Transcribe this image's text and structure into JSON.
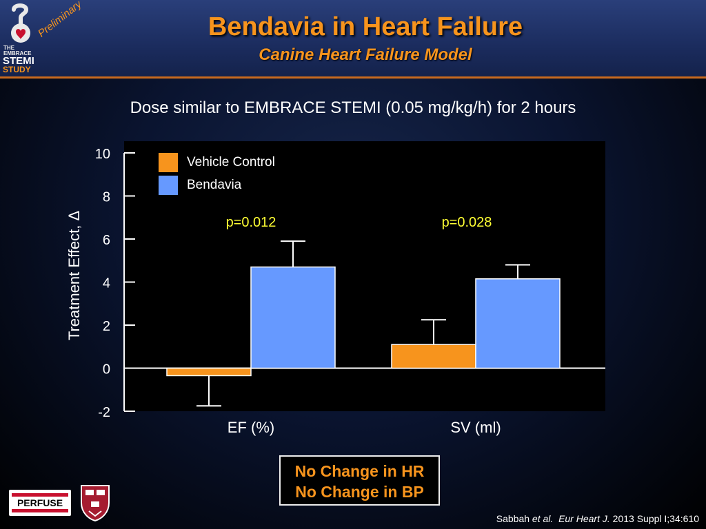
{
  "header": {
    "title": "Bendavia in Heart Failure",
    "subtitle": "Canine Heart Failure Model",
    "preliminary": "Preliminary",
    "logo": {
      "line1": "THE",
      "line2": "EMBRACE",
      "line3": "STEMI",
      "line4": "STUDY"
    }
  },
  "dose_text": "Dose similar to EMBRACE STEMI (0.05 mg/kg/h) for 2 hours",
  "chart_data": {
    "type": "bar",
    "ylabel": "Treatment Effect, Δ",
    "ylim": [
      -2,
      10
    ],
    "yticks": [
      -2,
      0,
      2,
      4,
      6,
      8,
      10
    ],
    "categories": [
      "EF (%)",
      "SV (ml)"
    ],
    "series": [
      {
        "name": "Vehicle Control",
        "color": "#f7941d",
        "values": [
          -0.35,
          1.1
        ],
        "errors": [
          1.4,
          1.15
        ]
      },
      {
        "name": "Bendavia",
        "color": "#6699ff",
        "values": [
          4.7,
          4.15
        ],
        "errors": [
          1.2,
          0.65
        ]
      }
    ],
    "annotations": [
      "p=0.012",
      "p=0.028"
    ],
    "legend_position": "top-left"
  },
  "notes": [
    "No Change in HR",
    "No Change in BP"
  ],
  "citation": {
    "author": "Sabbah",
    "etal": "et al.",
    "journal": "Eur Heart J.",
    "ref": "2013 Suppl I;34:610"
  },
  "perfuse_label": "PERFUSE",
  "colors": {
    "accent": "#f7941d",
    "bar_blue": "#6699ff",
    "background": "#0a1430"
  }
}
